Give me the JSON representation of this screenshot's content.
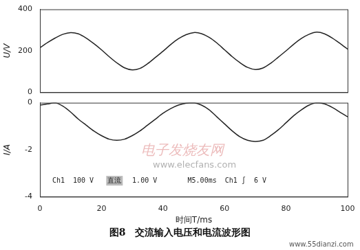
{
  "caption": "图8　交流输入电压和电流波形图",
  "annotations": [
    "Ch1  100 V",
    "直流",
    "1.00 V",
    "M5.00ms  Ch1 ∫  6 V"
  ],
  "watermarks": [
    "电子发烧友网",
    "www.elecfans.com",
    "www.55dianzi.com"
  ],
  "chart_data": [
    {
      "type": "line",
      "y_label": "U/V",
      "xlim": [
        0,
        100
      ],
      "xticks": [
        0,
        20,
        40,
        60,
        80,
        100
      ],
      "ylim": [
        0,
        400
      ],
      "yticks": [
        0,
        200,
        400
      ],
      "grid": false,
      "tick_labels": "y",
      "x": [
        0,
        2.5,
        5,
        7.5,
        10,
        12.5,
        15,
        17.5,
        20,
        22.5,
        25,
        27.5,
        30,
        32.5,
        35,
        37.5,
        40,
        42.5,
        45,
        47.5,
        50,
        52.5,
        55,
        57.5,
        60,
        62.5,
        65,
        67.5,
        70,
        72.5,
        75,
        77.5,
        80,
        82.5,
        85,
        87.5,
        90,
        92.5,
        95,
        97.5,
        100
      ],
      "values": [
        215,
        240,
        262,
        280,
        288,
        282,
        262,
        235,
        205,
        172,
        142,
        118,
        108,
        115,
        138,
        168,
        198,
        230,
        258,
        278,
        288,
        283,
        265,
        238,
        205,
        172,
        143,
        120,
        110,
        117,
        140,
        170,
        200,
        232,
        260,
        280,
        290,
        282,
        262,
        236,
        208
      ],
      "color": "#222222"
    },
    {
      "type": "line",
      "x_label": "时间T/ms",
      "y_label": "I/A",
      "xlim": [
        0,
        100
      ],
      "xticks": [
        0,
        20,
        40,
        60,
        80,
        100
      ],
      "ylim": [
        -4,
        0
      ],
      "yticks": [
        -4,
        -2,
        0
      ],
      "grid": false,
      "x": [
        0,
        2.5,
        5,
        7.5,
        10,
        12.5,
        15,
        17.5,
        20,
        22.5,
        25,
        27.5,
        30,
        32.5,
        35,
        37.5,
        40,
        42.5,
        45,
        47.5,
        50,
        52.5,
        55,
        57.5,
        60,
        62.5,
        65,
        67.5,
        70,
        72.5,
        75,
        77.5,
        80,
        82.5,
        85,
        87.5,
        90,
        92.5,
        95,
        97.5,
        100
      ],
      "values": [
        -0.1,
        -0.05,
        0,
        -0.15,
        -0.4,
        -0.7,
        -0.95,
        -1.2,
        -1.4,
        -1.55,
        -1.6,
        -1.55,
        -1.4,
        -1.2,
        -0.95,
        -0.7,
        -0.45,
        -0.25,
        -0.1,
        -0.02,
        0,
        -0.1,
        -0.3,
        -0.6,
        -0.9,
        -1.2,
        -1.45,
        -1.6,
        -1.65,
        -1.6,
        -1.4,
        -1.15,
        -0.85,
        -0.55,
        -0.3,
        -0.1,
        0,
        -0.05,
        -0.2,
        -0.4,
        -0.6
      ],
      "color": "#222222"
    }
  ]
}
